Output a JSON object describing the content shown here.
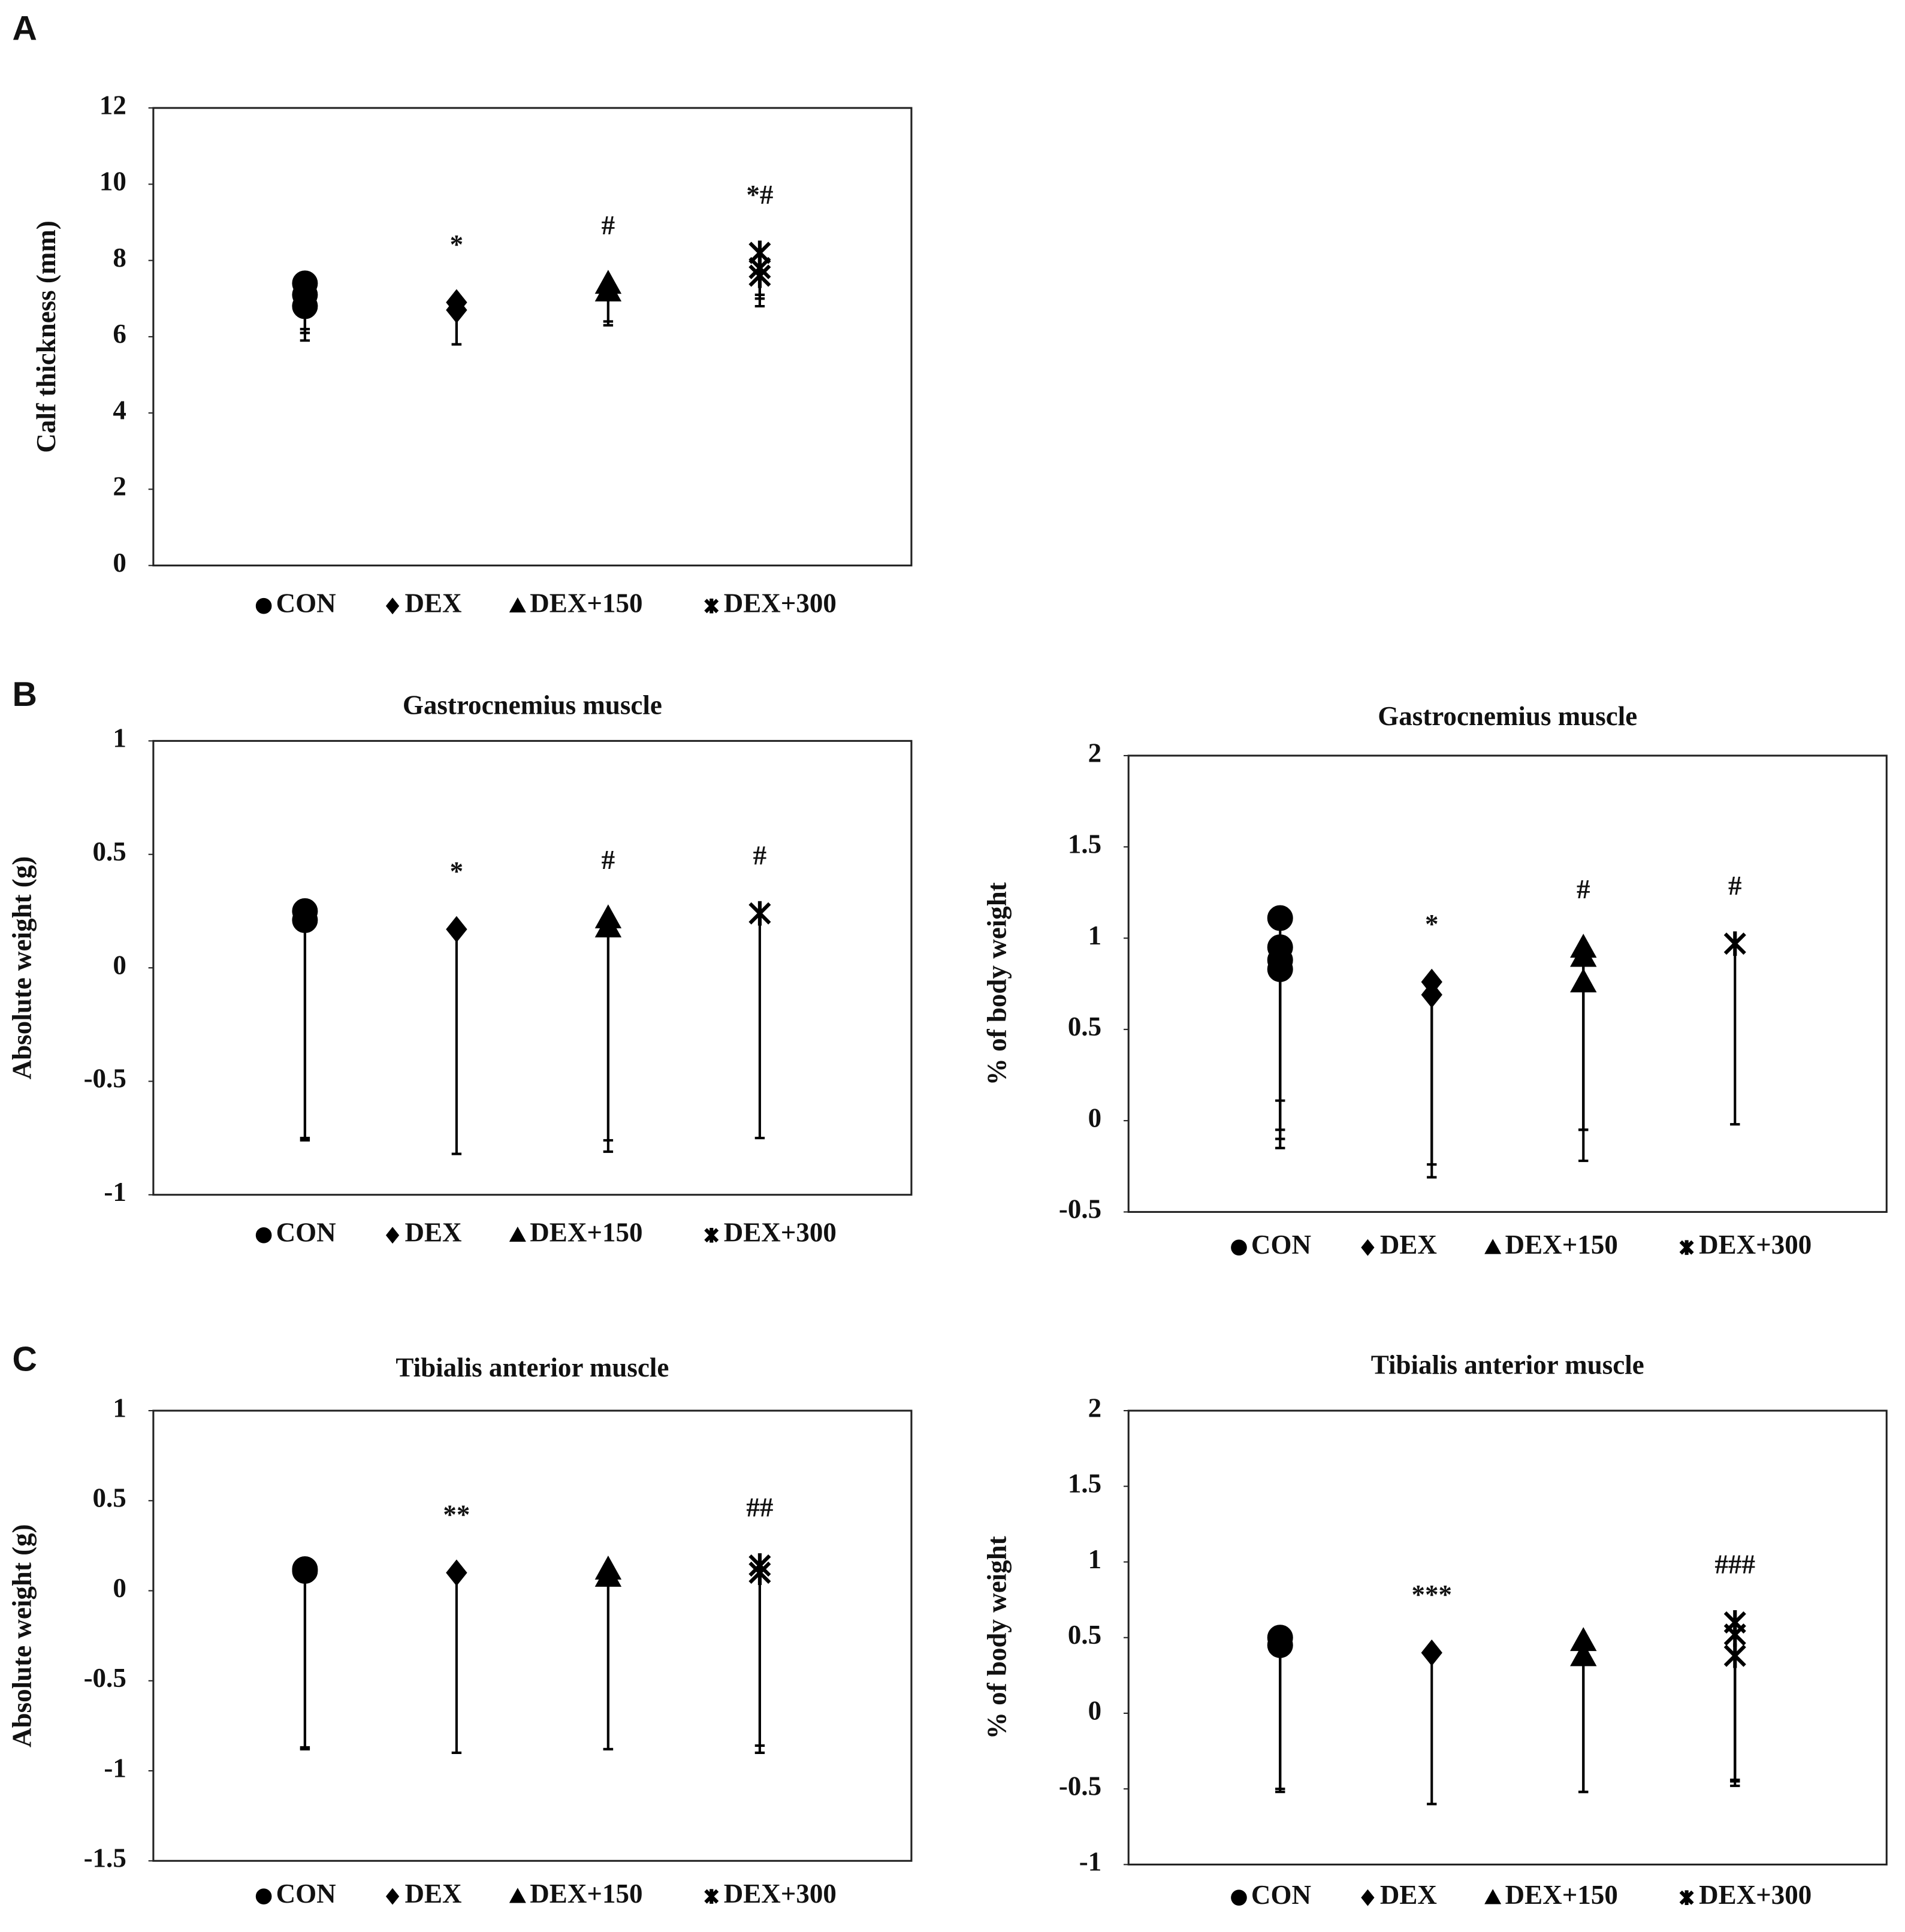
{
  "panel_labels": [
    "A",
    "B",
    "C"
  ],
  "chart_data": [
    {
      "type": "scatter",
      "ylabel": "Calf thickness (mm)",
      "ylim": [
        0,
        12
      ],
      "yticks": [
        0,
        2,
        4,
        6,
        8,
        10,
        12
      ],
      "series": [
        {
          "name": "CON",
          "marker": "circle",
          "color": "#000000",
          "values": [
            7.4,
            7.1,
            6.8
          ],
          "errors": [
            1.5,
            1.0,
            0.6
          ]
        },
        {
          "name": "DEX",
          "marker": "diamond",
          "color": "#000000",
          "values": [
            6.9,
            6.7
          ],
          "errors": [
            1.1,
            0.9
          ],
          "annotation": "*"
        },
        {
          "name": "DEX+150",
          "marker": "triangle",
          "color": "#000000",
          "values": [
            7.4,
            7.2
          ],
          "errors": [
            1.1,
            0.8
          ],
          "annotation": "#"
        },
        {
          "name": "DEX+300",
          "marker": "asterisk",
          "color": "#000000",
          "values": [
            8.2,
            7.8,
            7.6
          ],
          "errors": [
            1.4,
            0.8,
            0.5
          ],
          "annotation": "*#"
        }
      ]
    },
    {
      "type": "scatter",
      "title": "Gastrocnemius muscle",
      "ylabel": "Absolute weight (g)",
      "ylim": [
        -1,
        1
      ],
      "yticks": [
        -1,
        -0.5,
        0,
        0.5,
        1
      ],
      "series": [
        {
          "name": "CON",
          "marker": "circle",
          "color": "#000000",
          "values": [
            0.25,
            0.21
          ],
          "errors": [
            1.0,
            0.97
          ]
        },
        {
          "name": "DEX",
          "marker": "diamond",
          "color": "#000000",
          "values": [
            0.17
          ],
          "errors": [
            0.99
          ],
          "annotation": "*"
        },
        {
          "name": "DEX+150",
          "marker": "triangle",
          "color": "#000000",
          "values": [
            0.22,
            0.18
          ],
          "errors": [
            0.98,
            0.99
          ],
          "annotation": "#"
        },
        {
          "name": "DEX+300",
          "marker": "asterisk",
          "color": "#000000",
          "values": [
            0.24
          ],
          "errors": [
            0.99
          ],
          "annotation": "#"
        }
      ]
    },
    {
      "type": "scatter",
      "title": "Gastrocnemius muscle",
      "ylabel": "% of body weight",
      "ylim": [
        -0.5,
        2
      ],
      "yticks": [
        -0.5,
        0,
        0.5,
        1,
        1.5,
        2
      ],
      "series": [
        {
          "name": "CON",
          "marker": "circle",
          "color": "#000000",
          "values": [
            1.11,
            0.95,
            0.88,
            0.83
          ],
          "errors": [
            1.0,
            1.0,
            0.98,
            0.98
          ]
        },
        {
          "name": "DEX",
          "marker": "diamond",
          "color": "#000000",
          "values": [
            0.76,
            0.69
          ],
          "errors": [
            1.0,
            1.0
          ],
          "annotation": "*"
        },
        {
          "name": "DEX+150",
          "marker": "triangle",
          "color": "#000000",
          "values": [
            0.95,
            0.9,
            0.76
          ],
          "errors": [
            1.0,
            0.95,
            0.98
          ],
          "annotation": "#"
        },
        {
          "name": "DEX+300",
          "marker": "asterisk",
          "color": "#000000",
          "values": [
            0.97
          ],
          "errors": [
            0.99
          ],
          "annotation": "#"
        }
      ]
    },
    {
      "type": "scatter",
      "title": "Tibialis anterior muscle",
      "ylabel": "Absolute weight (g)",
      "ylim": [
        -1.5,
        1
      ],
      "yticks": [
        -1.5,
        -1,
        -0.5,
        0,
        0.5,
        1
      ],
      "series": [
        {
          "name": "CON",
          "marker": "circle",
          "color": "#000000",
          "values": [
            0.12,
            0.11
          ],
          "errors": [
            1.0,
            0.98
          ]
        },
        {
          "name": "DEX",
          "marker": "diamond",
          "color": "#000000",
          "values": [
            0.1
          ],
          "errors": [
            1.0
          ],
          "annotation": "**"
        },
        {
          "name": "DEX+150",
          "marker": "triangle",
          "color": "#000000",
          "values": [
            0.12,
            0.08
          ],
          "errors": [
            1.0,
            0.96
          ]
        },
        {
          "name": "DEX+300",
          "marker": "asterisk",
          "color": "#000000",
          "values": [
            0.14,
            0.1
          ],
          "errors": [
            1.0,
            1.0
          ],
          "annotation": "##"
        }
      ]
    },
    {
      "type": "scatter",
      "title": "Tibialis anterior muscle",
      "ylabel": "% of body weight",
      "ylim": [
        -1,
        2
      ],
      "yticks": [
        -1,
        -0.5,
        0,
        0.5,
        1,
        1.5,
        2
      ],
      "series": [
        {
          "name": "CON",
          "marker": "circle",
          "color": "#000000",
          "values": [
            0.5,
            0.45
          ],
          "errors": [
            1.0,
            0.97
          ]
        },
        {
          "name": "DEX",
          "marker": "diamond",
          "color": "#000000",
          "values": [
            0.4
          ],
          "errors": [
            1.0
          ],
          "annotation": "***"
        },
        {
          "name": "DEX+150",
          "marker": "triangle",
          "color": "#000000",
          "values": [
            0.48,
            0.38
          ],
          "errors": [
            1.0,
            0.9
          ]
        },
        {
          "name": "DEX+300",
          "marker": "asterisk",
          "color": "#000000",
          "values": [
            0.6,
            0.52,
            0.38
          ],
          "errors": [
            1.05,
            1.0,
            0.82
          ],
          "annotation": "###"
        }
      ]
    }
  ]
}
